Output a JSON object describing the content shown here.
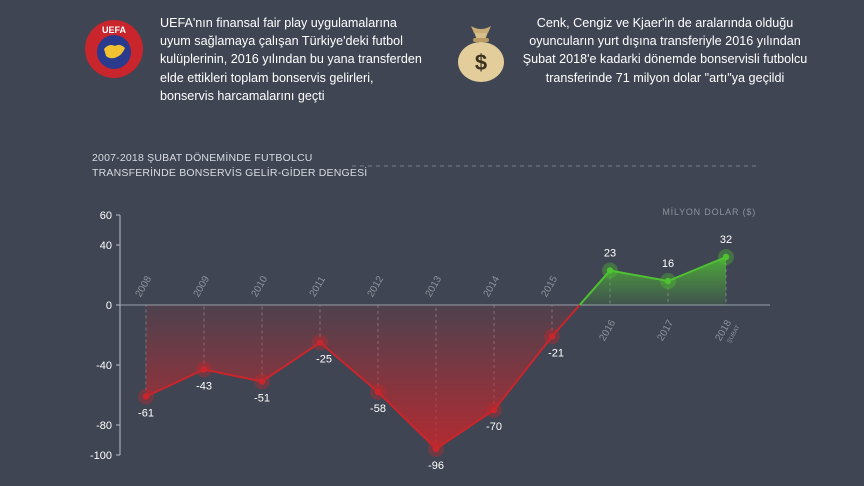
{
  "header": {
    "left_text": "UEFA'nın finansal fair play uygulamalarına uyum sağlamaya çalışan Türkiye'deki futbol kulüplerinin, 2016 yılından bu yana transferden elde ettikleri toplam bonservis gelirleri, bonservis harcamalarını geçti",
    "logo_text": "UEFA",
    "right_text": "Cenk, Cengiz ve Kjaer'in de aralarında olduğu oyuncuların yurt dışına transferiyle 2016 yılından Şubat 2018'e kadarki dönemde bonservisli futbolcu transferinde 71 milyon dolar \"artı\"ya geçildi",
    "bag_symbol": "$"
  },
  "colors": {
    "background": "#3f4552",
    "negative": "#c8262c",
    "positive": "#4fc232",
    "axis_text": "#ffffff",
    "muted_text": "#8d929c"
  },
  "icons": [
    "uefa-logo-icon",
    "money-bag-icon"
  ],
  "chart_data": {
    "type": "area",
    "title_line1": "2007-2018 ŞUBAT DÖNEMİNDE FUTBOLCU",
    "title_line2": "TRANSFERİNDE BONSERVİS GELİR-GİDER DENGESİ",
    "unit_label": "MİLYON DOLAR ($)",
    "categories": [
      "2008",
      "2009",
      "2010",
      "2011",
      "2012",
      "2013",
      "2014",
      "2015",
      "2016",
      "2017",
      "2018"
    ],
    "last_category_sub": "ŞUBAT",
    "values": [
      -61,
      -43,
      -51,
      -25,
      -58,
      -96,
      -70,
      -21,
      23,
      16,
      32
    ],
    "value_labels": [
      "-61",
      "-43",
      "-51",
      "-25",
      "-58",
      "-96",
      "-70",
      "-21",
      "23",
      "16",
      "32"
    ],
    "yticks": [
      60,
      40,
      0,
      -40,
      -80,
      -100
    ],
    "ylim": [
      -100,
      60
    ]
  }
}
